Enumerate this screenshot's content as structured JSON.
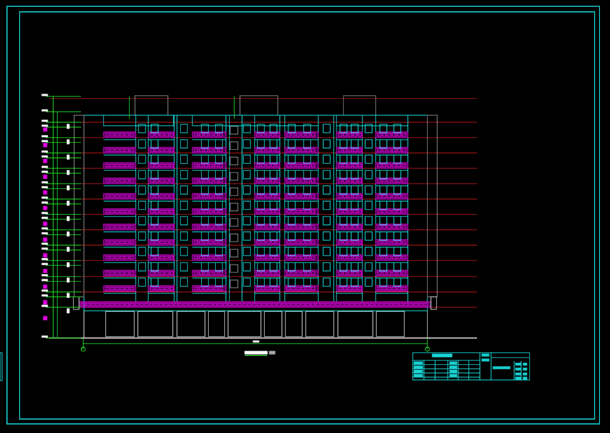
{
  "drawing": {
    "colors": {
      "background": "#000000",
      "frame": "#19d4d4",
      "facade": "#19e0e0",
      "balcony": "#e000e0",
      "level_line": "#b01818",
      "dimension": "#22dd22",
      "ground_floor": "#d8d8d8",
      "stair_core": "#8a8a8a"
    },
    "icons": [
      "axis-bubble-icon",
      "level-marker-icon"
    ]
  }
}
